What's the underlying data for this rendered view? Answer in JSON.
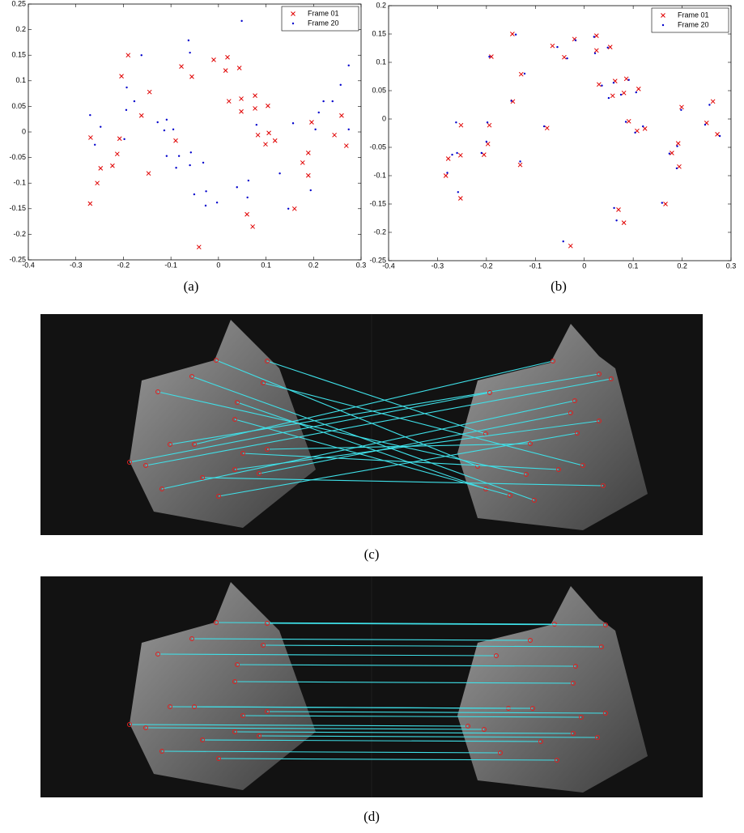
{
  "chart_data": [
    {
      "type": "scatter",
      "legend": "upper right",
      "grid": false,
      "xlim": [
        -0.4,
        0.3
      ],
      "xticks": [
        -0.4,
        -0.3,
        -0.2,
        -0.1,
        0,
        0.1,
        0.2,
        0.3
      ],
      "ylim": [
        -0.25,
        0.25
      ],
      "yticks": [
        -0.25,
        -0.2,
        -0.15,
        -0.1,
        -0.05,
        0,
        0.05,
        0.1,
        0.15,
        0.2,
        0.25
      ],
      "series": [
        {
          "name": "Frame 01",
          "color": "#e00000",
          "marker": "x",
          "x": [
            -0.269,
            -0.27,
            -0.255,
            -0.248,
            -0.223,
            -0.213,
            -0.208,
            -0.204,
            -0.19,
            -0.162,
            -0.145,
            -0.147,
            -0.09,
            -0.078,
            -0.056,
            -0.01,
            0.019,
            0.015,
            0.022,
            0.044,
            0.048,
            0.048,
            0.077,
            0.077,
            0.083,
            0.104,
            0.106,
            0.099,
            0.119,
            0.06,
            0.072,
            -0.041,
            0.16,
            0.177,
            0.189,
            0.189,
            0.196,
            0.244,
            0.259,
            0.269
          ],
          "y": [
            -0.011,
            -0.14,
            -0.1,
            -0.071,
            -0.066,
            -0.043,
            -0.013,
            0.109,
            0.15,
            0.032,
            0.078,
            -0.081,
            -0.017,
            0.128,
            0.108,
            0.141,
            0.146,
            0.12,
            0.06,
            0.125,
            0.065,
            0.04,
            0.071,
            0.046,
            -0.006,
            0.051,
            -0.002,
            -0.024,
            -0.017,
            -0.161,
            -0.185,
            -0.225,
            -0.15,
            -0.06,
            -0.041,
            -0.085,
            0.019,
            -0.006,
            0.032,
            -0.027
          ]
        },
        {
          "name": "Frame 20",
          "color": "#0000cc",
          "marker": "dot",
          "x": [
            -0.27,
            -0.26,
            -0.248,
            -0.193,
            -0.194,
            -0.198,
            -0.177,
            -0.162,
            -0.128,
            -0.109,
            -0.114,
            -0.095,
            -0.109,
            -0.089,
            -0.083,
            -0.063,
            -0.06,
            -0.058,
            -0.06,
            -0.032,
            -0.051,
            -0.026,
            -0.027,
            -0.003,
            0.049,
            0.039,
            0.061,
            0.063,
            0.08,
            0.129,
            0.147,
            0.157,
            0.194,
            0.204,
            0.211,
            0.221,
            0.24,
            0.257,
            0.274,
            0.274
          ],
          "y": [
            0.033,
            -0.025,
            0.01,
            0.087,
            0.043,
            -0.014,
            0.06,
            0.15,
            0.019,
            0.024,
            0.003,
            0.005,
            -0.047,
            -0.07,
            -0.047,
            0.179,
            0.155,
            -0.04,
            -0.065,
            -0.06,
            -0.122,
            -0.116,
            -0.144,
            -0.138,
            0.217,
            -0.108,
            -0.128,
            -0.095,
            0.014,
            -0.081,
            -0.15,
            0.017,
            -0.114,
            0.005,
            0.038,
            0.06,
            0.06,
            0.092,
            0.13,
            0.005
          ]
        }
      ]
    },
    {
      "type": "scatter",
      "legend": "upper right",
      "grid": false,
      "xlim": [
        -0.4,
        0.3
      ],
      "xticks": [
        -0.4,
        -0.3,
        -0.2,
        -0.1,
        0,
        0.1,
        0.2,
        0.3
      ],
      "ylim": [
        -0.25,
        0.2
      ],
      "yticks": [
        -0.25,
        -0.2,
        -0.15,
        -0.1,
        -0.05,
        0,
        0.05,
        0.1,
        0.15,
        0.2
      ],
      "series": [
        {
          "name": "Frame 01",
          "color": "#e00000",
          "marker": "x",
          "x": [
            -0.252,
            -0.253,
            -0.283,
            -0.278,
            -0.253,
            -0.194,
            -0.19,
            -0.147,
            -0.146,
            -0.131,
            -0.129,
            -0.076,
            -0.065,
            -0.041,
            -0.02,
            -0.028,
            0.025,
            0.025,
            0.03,
            0.053,
            0.058,
            0.063,
            0.081,
            0.086,
            0.091,
            0.111,
            0.108,
            0.124,
            0.07,
            0.081,
            0.166,
            0.179,
            0.192,
            0.194,
            0.199,
            0.25,
            0.263,
            0.272,
            -0.197,
            -0.205
          ],
          "y": [
            -0.011,
            -0.14,
            -0.1,
            -0.07,
            -0.064,
            -0.011,
            0.11,
            0.15,
            0.031,
            -0.081,
            0.079,
            -0.016,
            0.129,
            0.109,
            0.141,
            -0.224,
            0.147,
            0.121,
            0.061,
            0.127,
            0.041,
            0.067,
            0.046,
            0.071,
            -0.004,
            0.053,
            -0.021,
            -0.017,
            -0.16,
            -0.183,
            -0.15,
            -0.06,
            -0.043,
            -0.084,
            0.021,
            -0.007,
            0.031,
            -0.027,
            -0.044,
            -0.063
          ]
        },
        {
          "name": "Frame 20",
          "color": "#0000cc",
          "marker": "dot",
          "x": [
            -0.262,
            -0.258,
            -0.28,
            -0.27,
            -0.26,
            -0.198,
            -0.194,
            -0.14,
            -0.149,
            -0.131,
            -0.122,
            -0.082,
            -0.055,
            -0.035,
            -0.018,
            -0.043,
            0.02,
            0.022,
            0.036,
            0.048,
            0.05,
            0.06,
            0.075,
            0.091,
            0.085,
            0.106,
            0.104,
            0.12,
            0.061,
            0.066,
            0.159,
            0.174,
            0.19,
            0.189,
            0.198,
            0.247,
            0.256,
            0.277,
            -0.2,
            -0.21
          ],
          "y": [
            -0.006,
            -0.129,
            -0.095,
            -0.063,
            -0.06,
            -0.006,
            0.11,
            0.149,
            0.032,
            -0.075,
            0.08,
            -0.013,
            0.127,
            0.107,
            0.139,
            -0.216,
            0.145,
            0.116,
            0.059,
            0.126,
            0.037,
            0.064,
            0.043,
            0.069,
            -0.005,
            0.047,
            -0.024,
            -0.013,
            -0.157,
            -0.179,
            -0.148,
            -0.061,
            -0.048,
            -0.087,
            0.016,
            -0.01,
            0.025,
            -0.03,
            -0.04,
            -0.06
          ]
        }
      ]
    }
  ],
  "captions": [
    "(a)",
    "(b)",
    "(c)",
    "(d)"
  ]
}
